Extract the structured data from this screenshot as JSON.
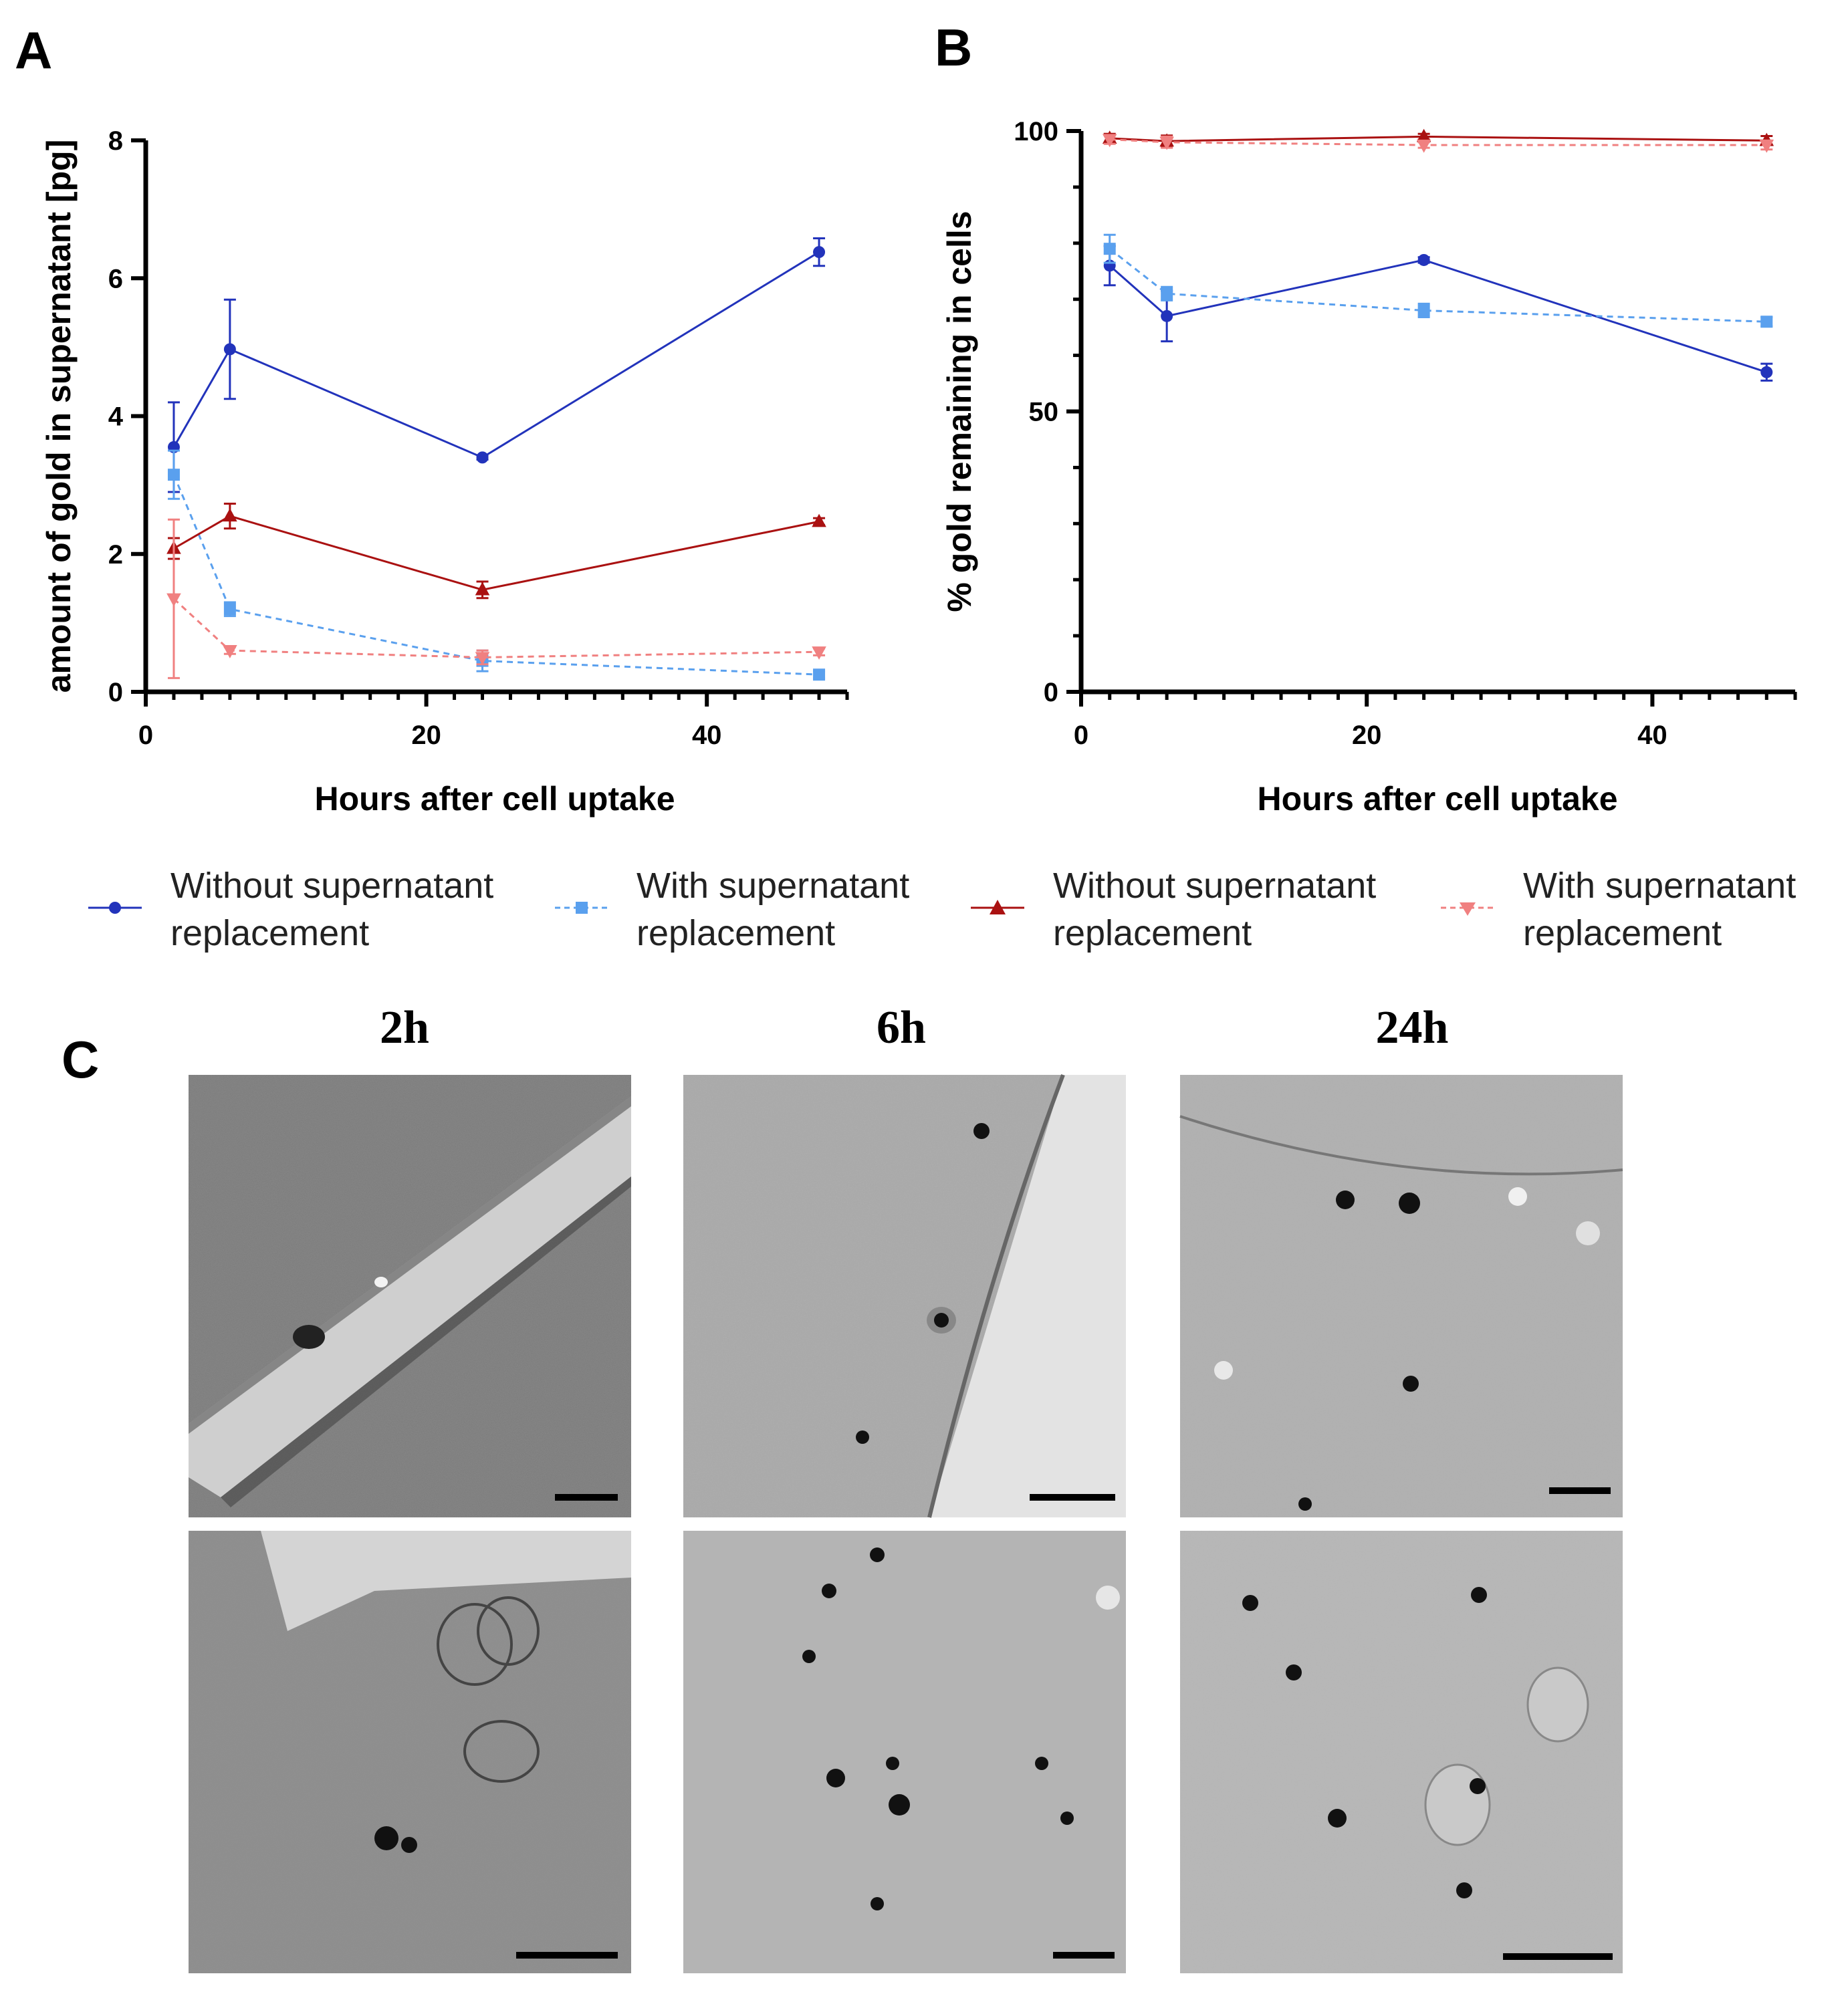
{
  "figure": {
    "panel_a_letter": "A",
    "panel_b_letter": "B",
    "panel_c_letter": "C",
    "time_labels": [
      "2h",
      "6h",
      "24h"
    ]
  },
  "legend": [
    {
      "line1": "Without supernatant",
      "line2": "replacement",
      "color": "#2233bb",
      "dashed": false,
      "marker": "circle"
    },
    {
      "line1": "With supernatant",
      "line2": "replacement",
      "color": "#5aa0ee",
      "dashed": true,
      "marker": "square"
    },
    {
      "line1": "Without supernatant",
      "line2": "replacement",
      "color": "#aa1111",
      "dashed": false,
      "marker": "triangle-up"
    },
    {
      "line1": "With supernatant",
      "line2": "replacement",
      "color": "#f08080",
      "dashed": true,
      "marker": "triangle-down"
    }
  ],
  "chart_data": [
    {
      "type": "line",
      "panel": "A",
      "xlabel": "Hours after cell uptake",
      "ylabel": "amount of gold in supernatant [pg]",
      "xlim": [
        0,
        50
      ],
      "ylim": [
        0,
        8
      ],
      "xticks": [
        0,
        20,
        40
      ],
      "yticks": [
        0,
        2,
        4,
        6,
        8
      ],
      "x": [
        2,
        6,
        24,
        48
      ],
      "series": [
        {
          "name": "Without supernatant replacement",
          "color": "#2233bb",
          "dashed": false,
          "marker": "circle",
          "values": [
            3.55,
            4.97,
            3.4,
            6.38
          ],
          "errors": [
            0.65,
            0.72,
            0.03,
            0.2
          ]
        },
        {
          "name": "With supernatant replacement",
          "color": "#5aa0ee",
          "dashed": true,
          "marker": "square",
          "values": [
            3.15,
            1.2,
            0.45,
            0.25
          ],
          "errors": [
            0.35,
            0.1,
            0.15,
            0.05
          ]
        },
        {
          "name": "Without supernatant replacement",
          "color": "#aa1111",
          "dashed": false,
          "marker": "triangle-up",
          "values": [
            2.08,
            2.55,
            1.48,
            2.47
          ],
          "errors": [
            0.15,
            0.18,
            0.12,
            0.05
          ]
        },
        {
          "name": "With supernatant replacement",
          "color": "#f08080",
          "dashed": true,
          "marker": "triangle-down",
          "values": [
            1.35,
            0.6,
            0.5,
            0.58
          ],
          "errors": [
            1.15,
            0.05,
            0.1,
            0.05
          ]
        }
      ]
    },
    {
      "type": "line",
      "panel": "B",
      "xlabel": "Hours after cell uptake",
      "ylabel": "% gold remaining in cells",
      "xlim": [
        0,
        50
      ],
      "ylim": [
        0,
        100
      ],
      "xticks": [
        0,
        20,
        40
      ],
      "yticks": [
        0,
        50,
        100
      ],
      "x": [
        2,
        6,
        24,
        48
      ],
      "series": [
        {
          "name": "Without supernatant replacement",
          "color": "#2233bb",
          "dashed": false,
          "marker": "circle",
          "values": [
            76,
            67,
            77,
            57
          ],
          "errors": [
            3.5,
            4.5,
            0.5,
            1.5
          ]
        },
        {
          "name": "With supernatant replacement",
          "color": "#5aa0ee",
          "dashed": true,
          "marker": "square",
          "values": [
            79,
            71,
            68,
            66
          ],
          "errors": [
            2.5,
            1.2,
            1.2,
            0.8
          ]
        },
        {
          "name": "Without supernatant replacement",
          "color": "#aa1111",
          "dashed": false,
          "marker": "triangle-up",
          "values": [
            98.7,
            98.2,
            99,
            98.3
          ],
          "errors": [
            0.8,
            1,
            0.5,
            0.8
          ]
        },
        {
          "name": "With supernatant replacement",
          "color": "#f08080",
          "dashed": true,
          "marker": "triangle-down",
          "values": [
            98.5,
            98,
            97.5,
            97.5
          ],
          "errors": [
            0.8,
            1,
            0.5,
            0.8
          ]
        }
      ]
    }
  ]
}
